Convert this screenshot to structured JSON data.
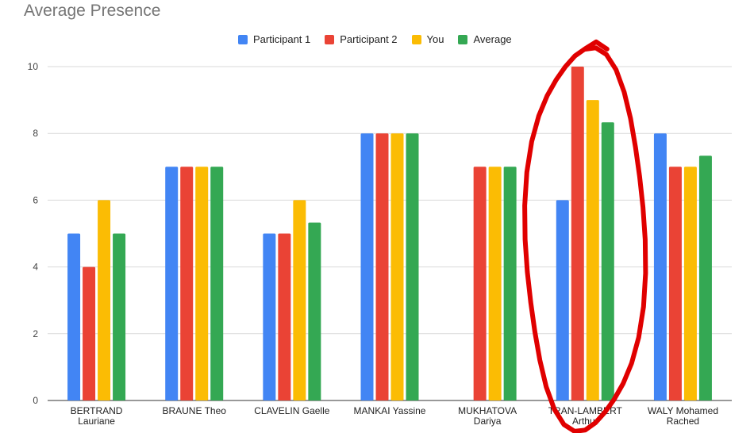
{
  "chart_data": {
    "type": "bar",
    "title": "Average Presence",
    "xlabel": "",
    "ylabel": "",
    "ylim": [
      0,
      10
    ],
    "yticks": [
      0,
      2,
      4,
      6,
      8,
      10
    ],
    "grid": true,
    "legend_position": "top",
    "categories": [
      [
        "BERTRAND",
        "Lauriane"
      ],
      [
        "BRAUNE Theo"
      ],
      [
        "CLAVELIN Gaelle"
      ],
      [
        "MANKAI Yassine"
      ],
      [
        "MUKHATOVA",
        "Dariya"
      ],
      [
        "TRAN-LAMBERT",
        "Arthur"
      ],
      [
        "WALY Mohamed",
        "Rached"
      ]
    ],
    "series": [
      {
        "name": "Participant 1",
        "color": "#4285F4",
        "values": [
          5,
          7,
          5,
          8,
          null,
          6,
          8
        ]
      },
      {
        "name": "Participant 2",
        "color": "#EA4335",
        "values": [
          4,
          7,
          5,
          8,
          7,
          10,
          7
        ]
      },
      {
        "name": "You",
        "color": "#FBBC04",
        "values": [
          6,
          7,
          6,
          8,
          7,
          9,
          7
        ]
      },
      {
        "name": "Average",
        "color": "#34A853",
        "values": [
          5,
          7,
          5.33,
          8,
          7,
          8.33,
          7.33
        ]
      }
    ],
    "annotation": {
      "type": "hand-drawn-circle",
      "color": "#E00000",
      "target_category_index": 5
    }
  }
}
